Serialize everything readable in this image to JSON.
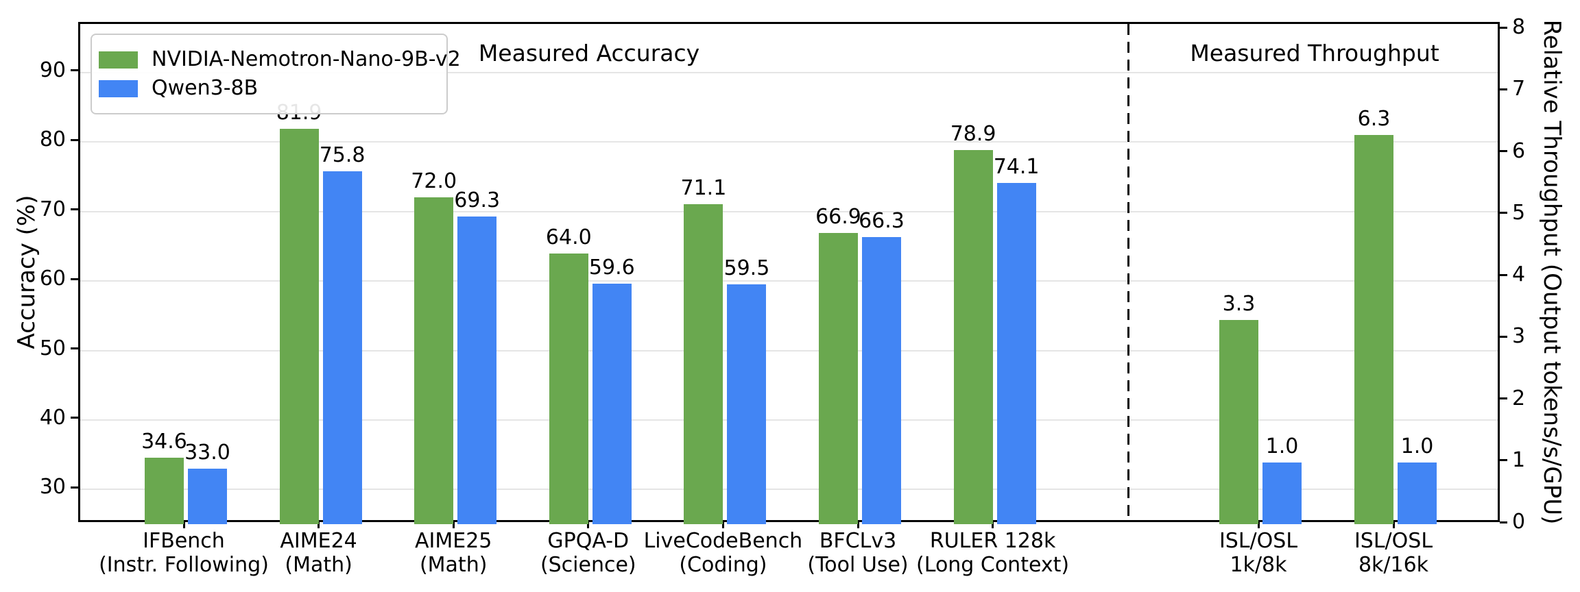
{
  "figure": {
    "background": "#ffffff",
    "accuracy_section_title": "Measured Accuracy",
    "throughput_section_title": "Measured Throughput"
  },
  "legend": {
    "items": [
      {
        "label": "NVIDIA-Nemotron-Nano-9B-v2",
        "color": "#6aa84f"
      },
      {
        "label": "Qwen3-8B",
        "color": "#4285f4"
      }
    ]
  },
  "axes": {
    "left_label": "Accuracy (%)",
    "right_label": "Relative Throughput (Output tokens/s/GPU)",
    "left_ticks": [
      30,
      40,
      50,
      60,
      70,
      80,
      90
    ],
    "right_ticks": [
      0,
      1,
      2,
      3,
      4,
      5,
      6,
      7,
      8
    ],
    "left_range": [
      25,
      97
    ],
    "right_range": [
      0,
      8.09
    ],
    "grid": "horizontal-left-axis-only"
  },
  "chart_data": {
    "type": "bar",
    "title": "",
    "categories": [
      {
        "line1": "IFBench",
        "line2": "(Instr. Following)",
        "section": "accuracy"
      },
      {
        "line1": "AIME24",
        "line2": "(Math)",
        "section": "accuracy"
      },
      {
        "line1": "AIME25",
        "line2": "(Math)",
        "section": "accuracy"
      },
      {
        "line1": "GPQA-D",
        "line2": "(Science)",
        "section": "accuracy"
      },
      {
        "line1": "LiveCodeBench",
        "line2": "(Coding)",
        "section": "accuracy"
      },
      {
        "line1": "BFCLv3",
        "line2": "(Tool Use)",
        "section": "accuracy"
      },
      {
        "line1": "RULER 128k",
        "line2": "(Long Context)",
        "section": "accuracy"
      },
      {
        "line1": "ISL/OSL",
        "line2": "1k/8k",
        "section": "throughput"
      },
      {
        "line1": "ISL/OSL",
        "line2": "8k/16k",
        "section": "throughput"
      }
    ],
    "series": [
      {
        "name": "NVIDIA-Nemotron-Nano-9B-v2",
        "color": "#6aa84f",
        "values": [
          34.6,
          81.9,
          72.0,
          64.0,
          71.1,
          66.9,
          78.9,
          3.3,
          6.3
        ]
      },
      {
        "name": "Qwen3-8B",
        "color": "#4285f4",
        "values": [
          33.0,
          75.8,
          69.3,
          59.6,
          59.5,
          66.3,
          74.1,
          1.0,
          1.0
        ]
      }
    ],
    "value_label_decimals": 1,
    "left_ylabel": "Accuracy (%)",
    "right_ylabel": "Relative Throughput (Output tokens/s/GPU)",
    "left_ylim": [
      25,
      97
    ],
    "right_ylim": [
      0,
      8.09
    ],
    "legend_position": "upper-left",
    "separator": "dashed vertical line between accuracy and throughput sections"
  }
}
